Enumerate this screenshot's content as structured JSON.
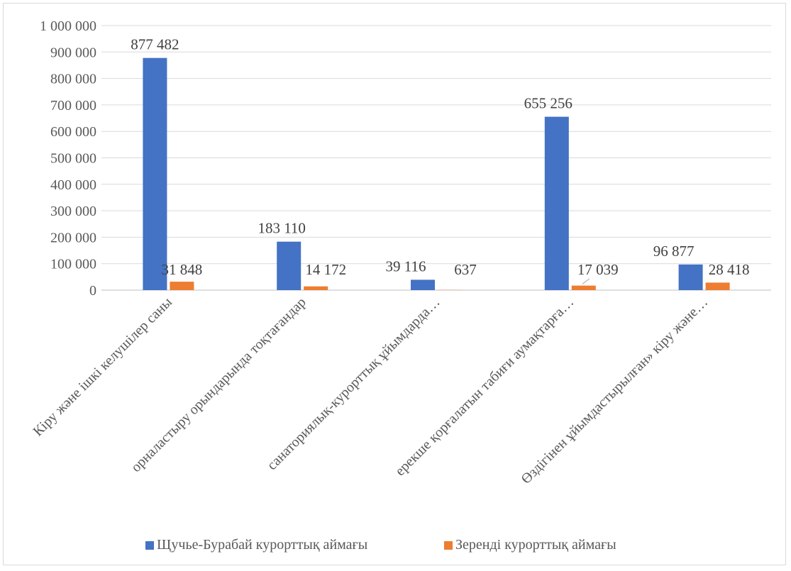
{
  "chart_data": {
    "type": "bar",
    "categories": [
      "Кіру және ішкі келушілер саны",
      "орналастыру орындарында тоқтағандар",
      "санаториялық-курорттық ұйымдарда…",
      "ерекше қорғалатын табиғи аумақтарға…",
      "Өздігінен ұйымдастырылған» кіру және…"
    ],
    "series": [
      {
        "name": "Щучье-Бурабай курорттық аймағы",
        "color": "#4472c4",
        "values": [
          877482,
          183110,
          39116,
          655256,
          96877
        ],
        "labels": [
          "877 482",
          "183 110",
          "39 116",
          "655 256",
          "96 877"
        ]
      },
      {
        "name": "Зеренді курорттық аймағы",
        "color": "#ed7d31",
        "values": [
          31848,
          14172,
          637,
          17039,
          28418
        ],
        "labels": [
          "31 848",
          "14 172",
          "637",
          "17 039",
          "28 418"
        ]
      }
    ],
    "ylim": [
      0,
      1000000
    ],
    "yticks": [
      0,
      100000,
      200000,
      300000,
      400000,
      500000,
      600000,
      700000,
      800000,
      900000,
      1000000
    ],
    "ytick_labels": [
      "0",
      "100 000",
      "200 000",
      "300 000",
      "400 000",
      "500 000",
      "600 000",
      "700 000",
      "800 000",
      "900 000",
      "1 000 000"
    ],
    "grid": true,
    "legend_position": "bottom"
  }
}
